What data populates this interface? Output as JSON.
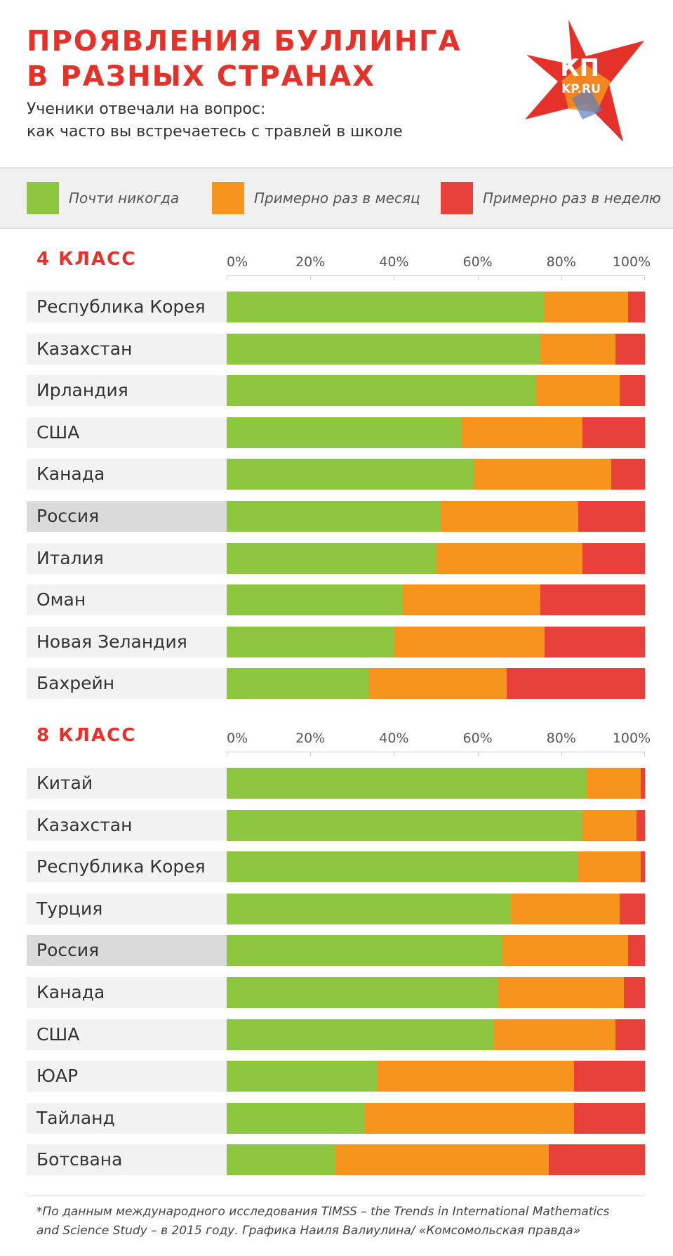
{
  "header": {
    "title_line1": "ПРОЯВЛЕНИЯ БУЛЛИНГА",
    "title_line2": "В РАЗНЫХ СТРАНАХ",
    "subtitle_line1": "Ученики отвечали на вопрос:",
    "subtitle_line2": "как часто вы встречаетесь с травлей в школе",
    "logo_text_top": "КП",
    "logo_text_bottom": "KP.RU"
  },
  "colors": {
    "accent": "#e4322b",
    "green": "#8dc63f",
    "orange": "#f7941d",
    "red": "#e8403a"
  },
  "footnote": {
    "line1": "*По данным международного исследования TIMSS – the Trends in International Mathematics",
    "line2": "and Science Study – в 2015 году. Графика Наиля Валиулина/ «Комсомольская правда»"
  },
  "chart_data": [
    {
      "type": "bar",
      "stacked": true,
      "orientation": "horizontal",
      "title": "4 КЛАСС",
      "xlim": [
        0,
        100
      ],
      "xticks": [
        "0%",
        "20%",
        "40%",
        "60%",
        "80%",
        "100%"
      ],
      "legend": [
        {
          "label": "Почти никогда",
          "color": "#8dc63f"
        },
        {
          "label": "Примерно раз в месяц",
          "color": "#f7941d"
        },
        {
          "label": "Примерно раз в неделю",
          "color": "#e8403a"
        }
      ],
      "highlight": "Россия",
      "categories": [
        "Республика Корея",
        "Казахстан",
        "Ирландия",
        "США",
        "Канада",
        "Россия",
        "Италия",
        "Оман",
        "Новая Зеландия",
        "Бахрейн"
      ],
      "series": [
        {
          "name": "Почти никогда",
          "values": [
            76,
            75,
            74,
            56,
            59,
            51,
            50,
            42,
            40,
            34
          ]
        },
        {
          "name": "Примерно раз в месяц",
          "values": [
            20,
            18,
            20,
            29,
            33,
            33,
            35,
            33,
            36,
            33
          ]
        },
        {
          "name": "Примерно раз в неделю",
          "values": [
            4,
            7,
            6,
            15,
            8,
            16,
            15,
            25,
            24,
            33
          ]
        }
      ]
    },
    {
      "type": "bar",
      "stacked": true,
      "orientation": "horizontal",
      "title": "8 КЛАСС",
      "xlim": [
        0,
        100
      ],
      "xticks": [
        "0%",
        "20%",
        "40%",
        "60%",
        "80%",
        "100%"
      ],
      "highlight": "Россия",
      "categories": [
        "Китай",
        "Казахстан",
        "Республика Корея",
        "Турция",
        "Россия",
        "Канада",
        "США",
        "ЮАР",
        "Тайланд",
        "Ботсвана"
      ],
      "series": [
        {
          "name": "Почти никогда",
          "values": [
            86,
            85,
            84,
            68,
            66,
            65,
            64,
            36,
            33,
            26
          ]
        },
        {
          "name": "Примерно раз в месяц",
          "values": [
            13,
            13,
            15,
            26,
            30,
            30,
            29,
            47,
            50,
            51
          ]
        },
        {
          "name": "Примерно раз в неделю",
          "values": [
            1,
            2,
            1,
            6,
            4,
            5,
            7,
            17,
            17,
            23
          ]
        }
      ]
    }
  ]
}
